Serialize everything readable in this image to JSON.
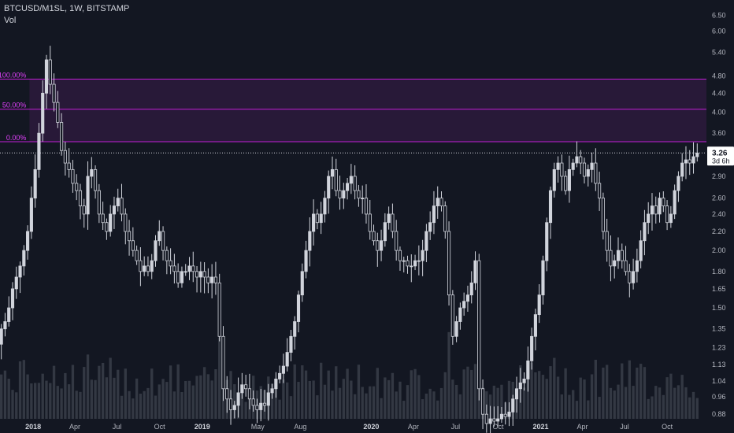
{
  "header": {
    "symbol_line": "BTCUSD/M1SL, 1W, BITSTAMP",
    "indicator": "Vol"
  },
  "chart_data": {
    "type": "candlestick",
    "title": "BTCUSD/M1SL, 1W, BITSTAMP",
    "y_scale": "log",
    "ylim": [
      0.86,
      6.8
    ],
    "y_ticks": [
      "6.50",
      "6.00",
      "5.40",
      "4.80",
      "4.40",
      "4.00",
      "3.60",
      "3.26",
      "2.90",
      "2.60",
      "2.40",
      "2.20",
      "2.00",
      "1.80",
      "1.65",
      "1.50",
      "1.35",
      "1.23",
      "1.13",
      "1.04",
      "0.96",
      "0.88"
    ],
    "x_ticks": [
      "Oct",
      "2018",
      "Apr",
      "Jul",
      "Oct",
      "2019",
      "May",
      "Aug",
      "2020",
      "Apr",
      "Jul",
      "Oct",
      "2021",
      "Apr",
      "Jul",
      "Oct"
    ],
    "bold_x_ticks": [
      "2018",
      "2019",
      "2020",
      "2021"
    ],
    "x_range": [
      "2017-10-01",
      "2021-12-13"
    ],
    "last_price": "3.26",
    "countdown": "3d 6h",
    "fib_levels": [
      {
        "label": "100.00%",
        "value": 4.72
      },
      {
        "label": "50.00%",
        "value": 4.06
      },
      {
        "label": "0.00%",
        "value": 3.45
      }
    ],
    "fib_start": "2017-12-24",
    "series": [
      {
        "name": "close",
        "weekly_closes": [
          1.18,
          1.25,
          1.35,
          1.4,
          1.5,
          1.65,
          1.75,
          1.85,
          2.0,
          2.2,
          2.6,
          3.0,
          3.6,
          4.4,
          5.2,
          4.6,
          4.2,
          3.8,
          3.3,
          3.1,
          3.0,
          2.8,
          2.7,
          2.5,
          2.4,
          2.9,
          3.0,
          2.7,
          2.4,
          2.3,
          2.2,
          2.4,
          2.5,
          2.6,
          2.4,
          2.2,
          2.1,
          2.0,
          1.9,
          1.8,
          1.85,
          1.8,
          1.9,
          2.1,
          2.2,
          2.0,
          1.9,
          1.85,
          1.8,
          1.7,
          1.8,
          1.8,
          1.85,
          1.8,
          1.75,
          1.8,
          1.75,
          1.7,
          1.75,
          1.7,
          1.3,
          1.0,
          0.95,
          0.9,
          0.92,
          0.98,
          1.02,
          1.0,
          0.95,
          0.92,
          0.9,
          0.93,
          0.92,
          0.98,
          1.0,
          1.05,
          1.08,
          1.12,
          1.2,
          1.3,
          1.4,
          1.6,
          1.8,
          2.0,
          2.2,
          2.4,
          2.3,
          2.4,
          2.6,
          2.9,
          3.0,
          2.7,
          2.6,
          2.7,
          2.8,
          2.9,
          2.7,
          2.6,
          2.6,
          2.4,
          2.2,
          2.1,
          2.0,
          2.1,
          2.3,
          2.4,
          2.2,
          2.0,
          1.9,
          1.9,
          1.85,
          1.85,
          1.9,
          1.9,
          2.0,
          2.2,
          2.3,
          2.5,
          2.6,
          2.5,
          2.2,
          1.6,
          1.3,
          1.4,
          1.5,
          1.55,
          1.6,
          1.7,
          1.9,
          1.0,
          0.88,
          0.84,
          0.86,
          0.85,
          0.86,
          0.88,
          0.87,
          0.89,
          0.95,
          1.0,
          1.03,
          1.05,
          1.15,
          1.3,
          1.45,
          1.6,
          1.9,
          2.3,
          2.7,
          3.0,
          3.1,
          2.9,
          2.7,
          3.0,
          3.1,
          3.2,
          3.1,
          2.9,
          3.0,
          3.1,
          2.8,
          2.6,
          2.2,
          2.0,
          1.85,
          1.9,
          2.0,
          1.9,
          1.8,
          1.7,
          1.8,
          1.9,
          2.1,
          2.3,
          2.4,
          2.5,
          2.4,
          2.6,
          2.5,
          2.3,
          2.4,
          2.7,
          2.9,
          3.1,
          3.15,
          3.1,
          3.2,
          3.26
        ]
      }
    ]
  }
}
